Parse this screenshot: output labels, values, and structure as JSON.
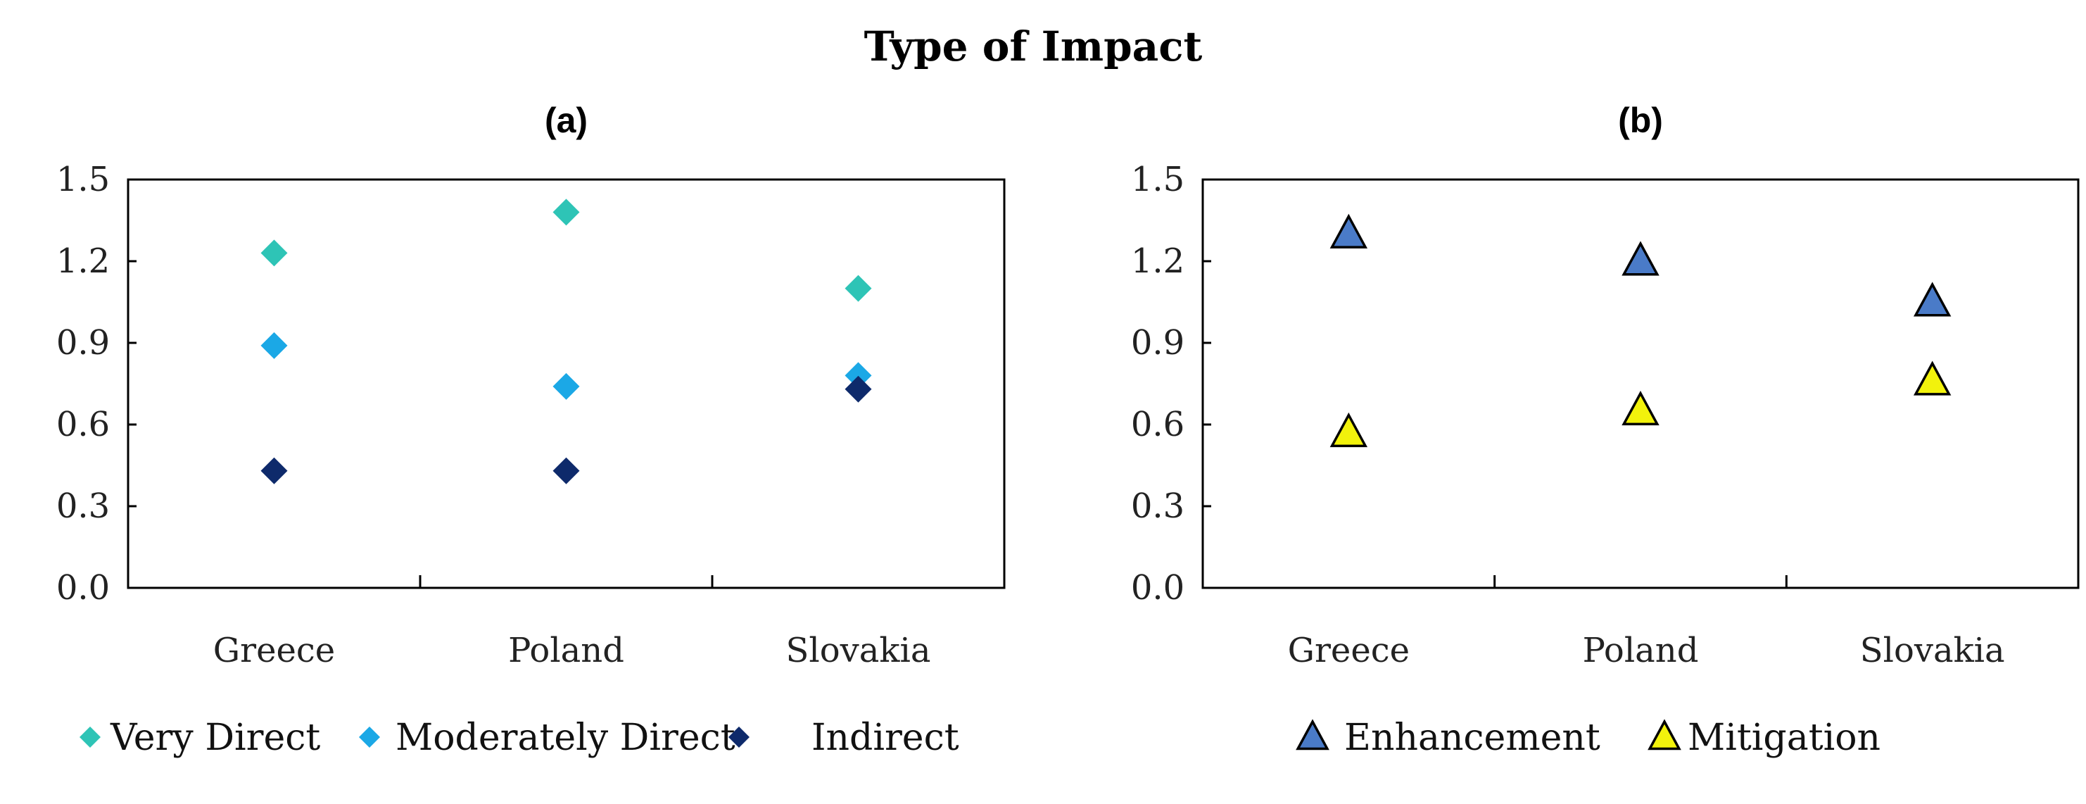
{
  "title": "Type of Impact",
  "chart_data": [
    {
      "panel_label": "(a)",
      "type": "scatter",
      "categories": [
        "Greece",
        "Poland",
        "Slovakia"
      ],
      "ylim": [
        0,
        1.5
      ],
      "yticks": [
        "0.0",
        "0.3",
        "0.6",
        "0.9",
        "1.2",
        "1.5"
      ],
      "series": [
        {
          "name": "Very Direct",
          "marker": "diamond",
          "color": "#2EC4B6",
          "values": [
            1.23,
            1.38,
            1.1
          ]
        },
        {
          "name": "Moderately Direct",
          "marker": "diamond",
          "color": "#1BA8E6",
          "values": [
            0.89,
            0.74,
            0.78
          ]
        },
        {
          "name": "Indirect",
          "marker": "diamond",
          "color": "#0E2A6B",
          "values": [
            0.43,
            0.43,
            0.73
          ]
        }
      ],
      "legend_position": "bottom"
    },
    {
      "panel_label": "(b)",
      "type": "scatter",
      "categories": [
        "Greece",
        "Poland",
        "Slovakia"
      ],
      "ylim": [
        0,
        1.5
      ],
      "yticks": [
        "0.0",
        "0.3",
        "0.6",
        "0.9",
        "1.2",
        "1.5"
      ],
      "series": [
        {
          "name": "Enhancement",
          "marker": "triangle",
          "color": "#4A7BC8",
          "values": [
            1.3,
            1.2,
            1.05
          ]
        },
        {
          "name": "Mitigation",
          "marker": "triangle",
          "color": "#F2F20C",
          "values": [
            0.57,
            0.65,
            0.76
          ]
        }
      ],
      "legend_position": "bottom"
    }
  ]
}
